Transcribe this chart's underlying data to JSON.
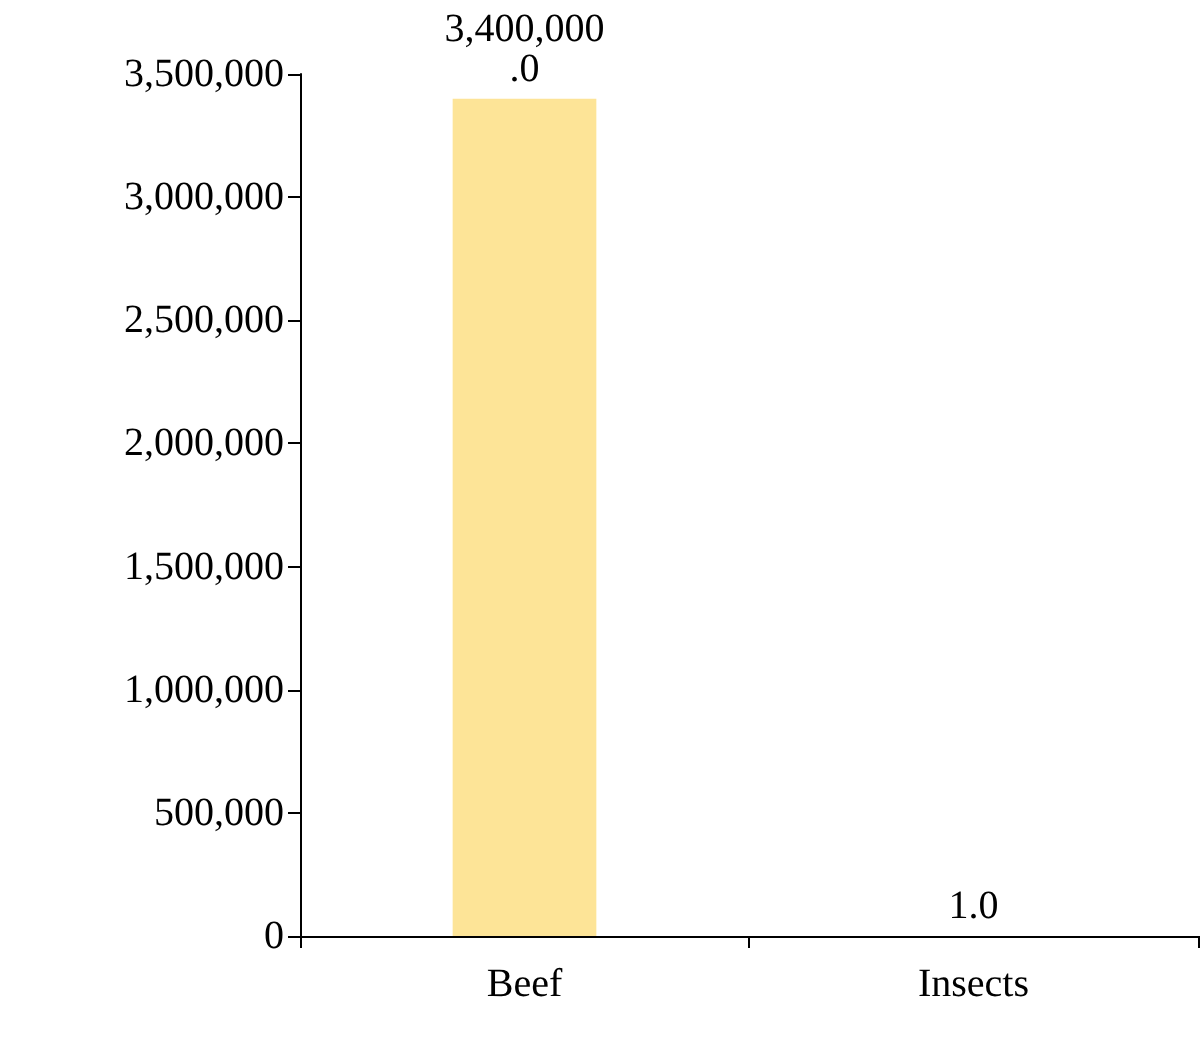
{
  "chart_data": {
    "type": "bar",
    "categories": [
      "Beef",
      "Insects"
    ],
    "values": [
      3400000,
      1
    ],
    "color": "#fde497",
    "value_labels": [
      "3,400,000.0",
      "1.0"
    ],
    "ylim": [
      0,
      3500000
    ],
    "yticks": [
      {
        "value": 0,
        "label": "0"
      },
      {
        "value": 500000,
        "label": "500,000"
      },
      {
        "value": 1000000,
        "label": "1,000,000"
      },
      {
        "value": 1500000,
        "label": "1,500,000"
      },
      {
        "value": 2000000,
        "label": "2,000,000"
      },
      {
        "value": 2500000,
        "label": "2,500,000"
      },
      {
        "value": 3000000,
        "label": "3,000,000"
      },
      {
        "value": 3500000,
        "label": "3,500,000"
      }
    ],
    "grid": false
  }
}
